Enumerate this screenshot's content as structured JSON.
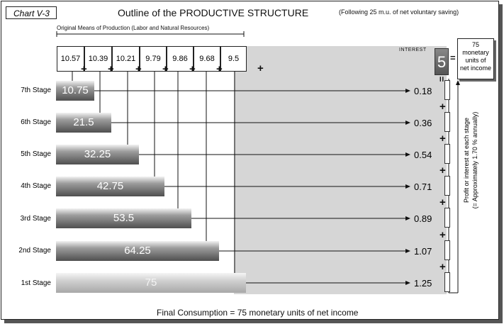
{
  "chart_label": "Chart V-3",
  "title": "Outline of the PRODUCTIVE STRUCTURE",
  "subtitle": "(Following 25 m.u. of net  voluntary saving)",
  "means_label": "Original Means of Production  (Labor and Natural Resources)",
  "means_values": [
    "10.57",
    "10.39",
    "10.21",
    "9.79",
    "9.86",
    "9.68",
    "9.5"
  ],
  "interest_label": "INTEREST",
  "interest_value": "5",
  "income_box": [
    "75",
    "monetary",
    "units of",
    "net income"
  ],
  "side_text": [
    "Profit or interest at  each stage",
    "(= Approximately 1.70 % annually)"
  ],
  "stages": [
    {
      "label": "7th Stage",
      "value": "10.75",
      "profit": "0.18"
    },
    {
      "label": "6th Stage",
      "value": "21.5",
      "profit": "0.36"
    },
    {
      "label": "5th Stage",
      "value": "32.25",
      "profit": "0.54"
    },
    {
      "label": "4th Stage",
      "value": "42.75",
      "profit": "0.71"
    },
    {
      "label": "3rd Stage",
      "value": "53.5",
      "profit": "0.89"
    },
    {
      "label": "2nd Stage",
      "value": "64.25",
      "profit": "1.07"
    },
    {
      "label": "1st Stage",
      "value": "75",
      "profit": "1.25"
    }
  ],
  "plus_sign": "+",
  "equals_sign": "=",
  "footer": "Final Consumption = 75 monetary units of net income"
}
